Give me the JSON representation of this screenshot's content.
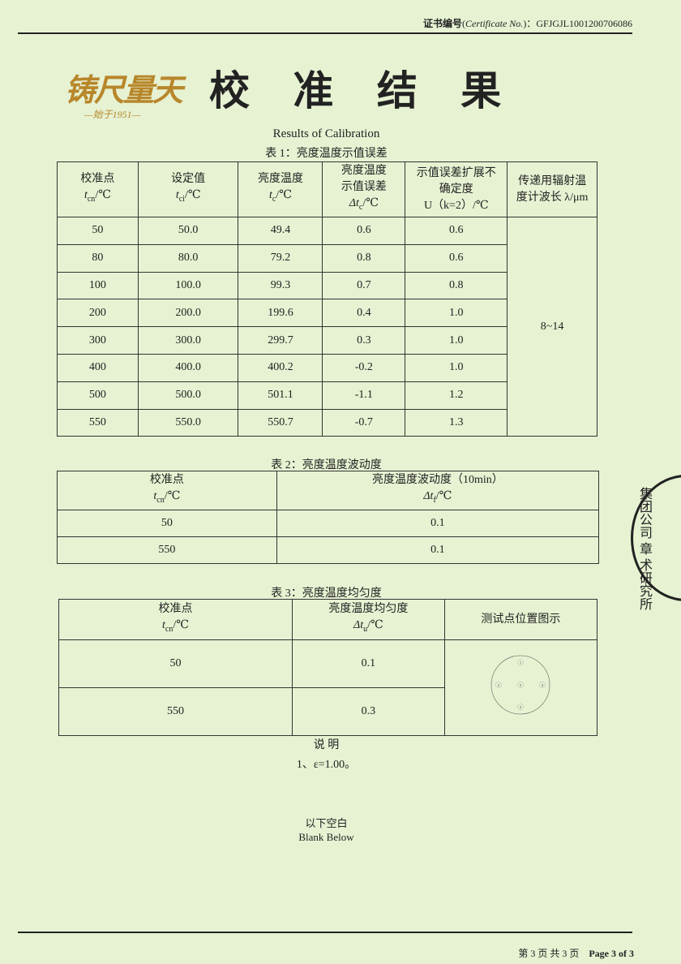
{
  "header": {
    "cert_label": "证书编号",
    "cert_label_en": "Certificate No.",
    "cert_no": "GFJGJL1001200706086"
  },
  "logo": {
    "text": "铸尺量天",
    "since": "—始于1951—"
  },
  "title": "校 准 结 果",
  "subtitle": "Results of Calibration",
  "table1": {
    "caption": "表 1：亮度温度示值误差",
    "headers": [
      {
        "l1": "校准点",
        "var": "t",
        "sub": "cn",
        "unit": "/℃"
      },
      {
        "l1": "设定值",
        "var": "t",
        "sub": "ci",
        "unit": "/℃"
      },
      {
        "l1": "亮度温度",
        "var": "t",
        "sub": "c",
        "unit": "/℃"
      },
      {
        "l1": "亮度温度",
        "l2": "示值误差",
        "var": "Δt",
        "sub": "c",
        "unit": "/℃"
      },
      {
        "l1": "示值误差扩展不",
        "l2": "确定度",
        "l3": "U（k=2）/℃"
      },
      {
        "l1": "传递用辐射温",
        "l2": "度计波长 λ/μm"
      }
    ],
    "rows": [
      [
        "50",
        "50.0",
        "49.4",
        "0.6",
        "0.6"
      ],
      [
        "80",
        "80.0",
        "79.2",
        "0.8",
        "0.6"
      ],
      [
        "100",
        "100.0",
        "99.3",
        "0.7",
        "0.8"
      ],
      [
        "200",
        "200.0",
        "199.6",
        "0.4",
        "1.0"
      ],
      [
        "300",
        "300.0",
        "299.7",
        "0.3",
        "1.0"
      ],
      [
        "400",
        "400.0",
        "400.2",
        "-0.2",
        "1.0"
      ],
      [
        "500",
        "500.0",
        "501.1",
        "-1.1",
        "1.2"
      ],
      [
        "550",
        "550.0",
        "550.7",
        "-0.7",
        "1.3"
      ]
    ],
    "wavelength": "8~14"
  },
  "table2": {
    "caption": "表 2：亮度温度波动度",
    "headers": [
      {
        "l1": "校准点",
        "var": "t",
        "sub": "cn",
        "unit": "/℃"
      },
      {
        "l1": "亮度温度波动度（10min）",
        "var": "Δt",
        "sub": "f",
        "unit": "/℃"
      }
    ],
    "rows": [
      [
        "50",
        "0.1"
      ],
      [
        "550",
        "0.1"
      ]
    ]
  },
  "table3": {
    "caption": "表 3：亮度温度均匀度",
    "headers": [
      {
        "l1": "校准点",
        "var": "t",
        "sub": "cn",
        "unit": "/℃"
      },
      {
        "l1": "亮度温度均匀度",
        "var": "Δt",
        "sub": "u",
        "unit": "/℃"
      },
      {
        "l1": "测试点位置图示"
      }
    ],
    "rows": [
      [
        "50",
        "0.1"
      ],
      [
        "550",
        "0.3"
      ]
    ],
    "diagram_points": [
      "1",
      "2",
      "3",
      "4",
      "5"
    ]
  },
  "notes": {
    "title": "说 明",
    "items": [
      "1、ε=1.00。"
    ]
  },
  "blank": {
    "cn": "以下空白",
    "en": "Blank Below"
  },
  "stamp": {
    "text": "集团公司 章 术研究所"
  },
  "footer": {
    "cn": "第 3 页 共 3 页",
    "en": "Page 3 of 3"
  }
}
